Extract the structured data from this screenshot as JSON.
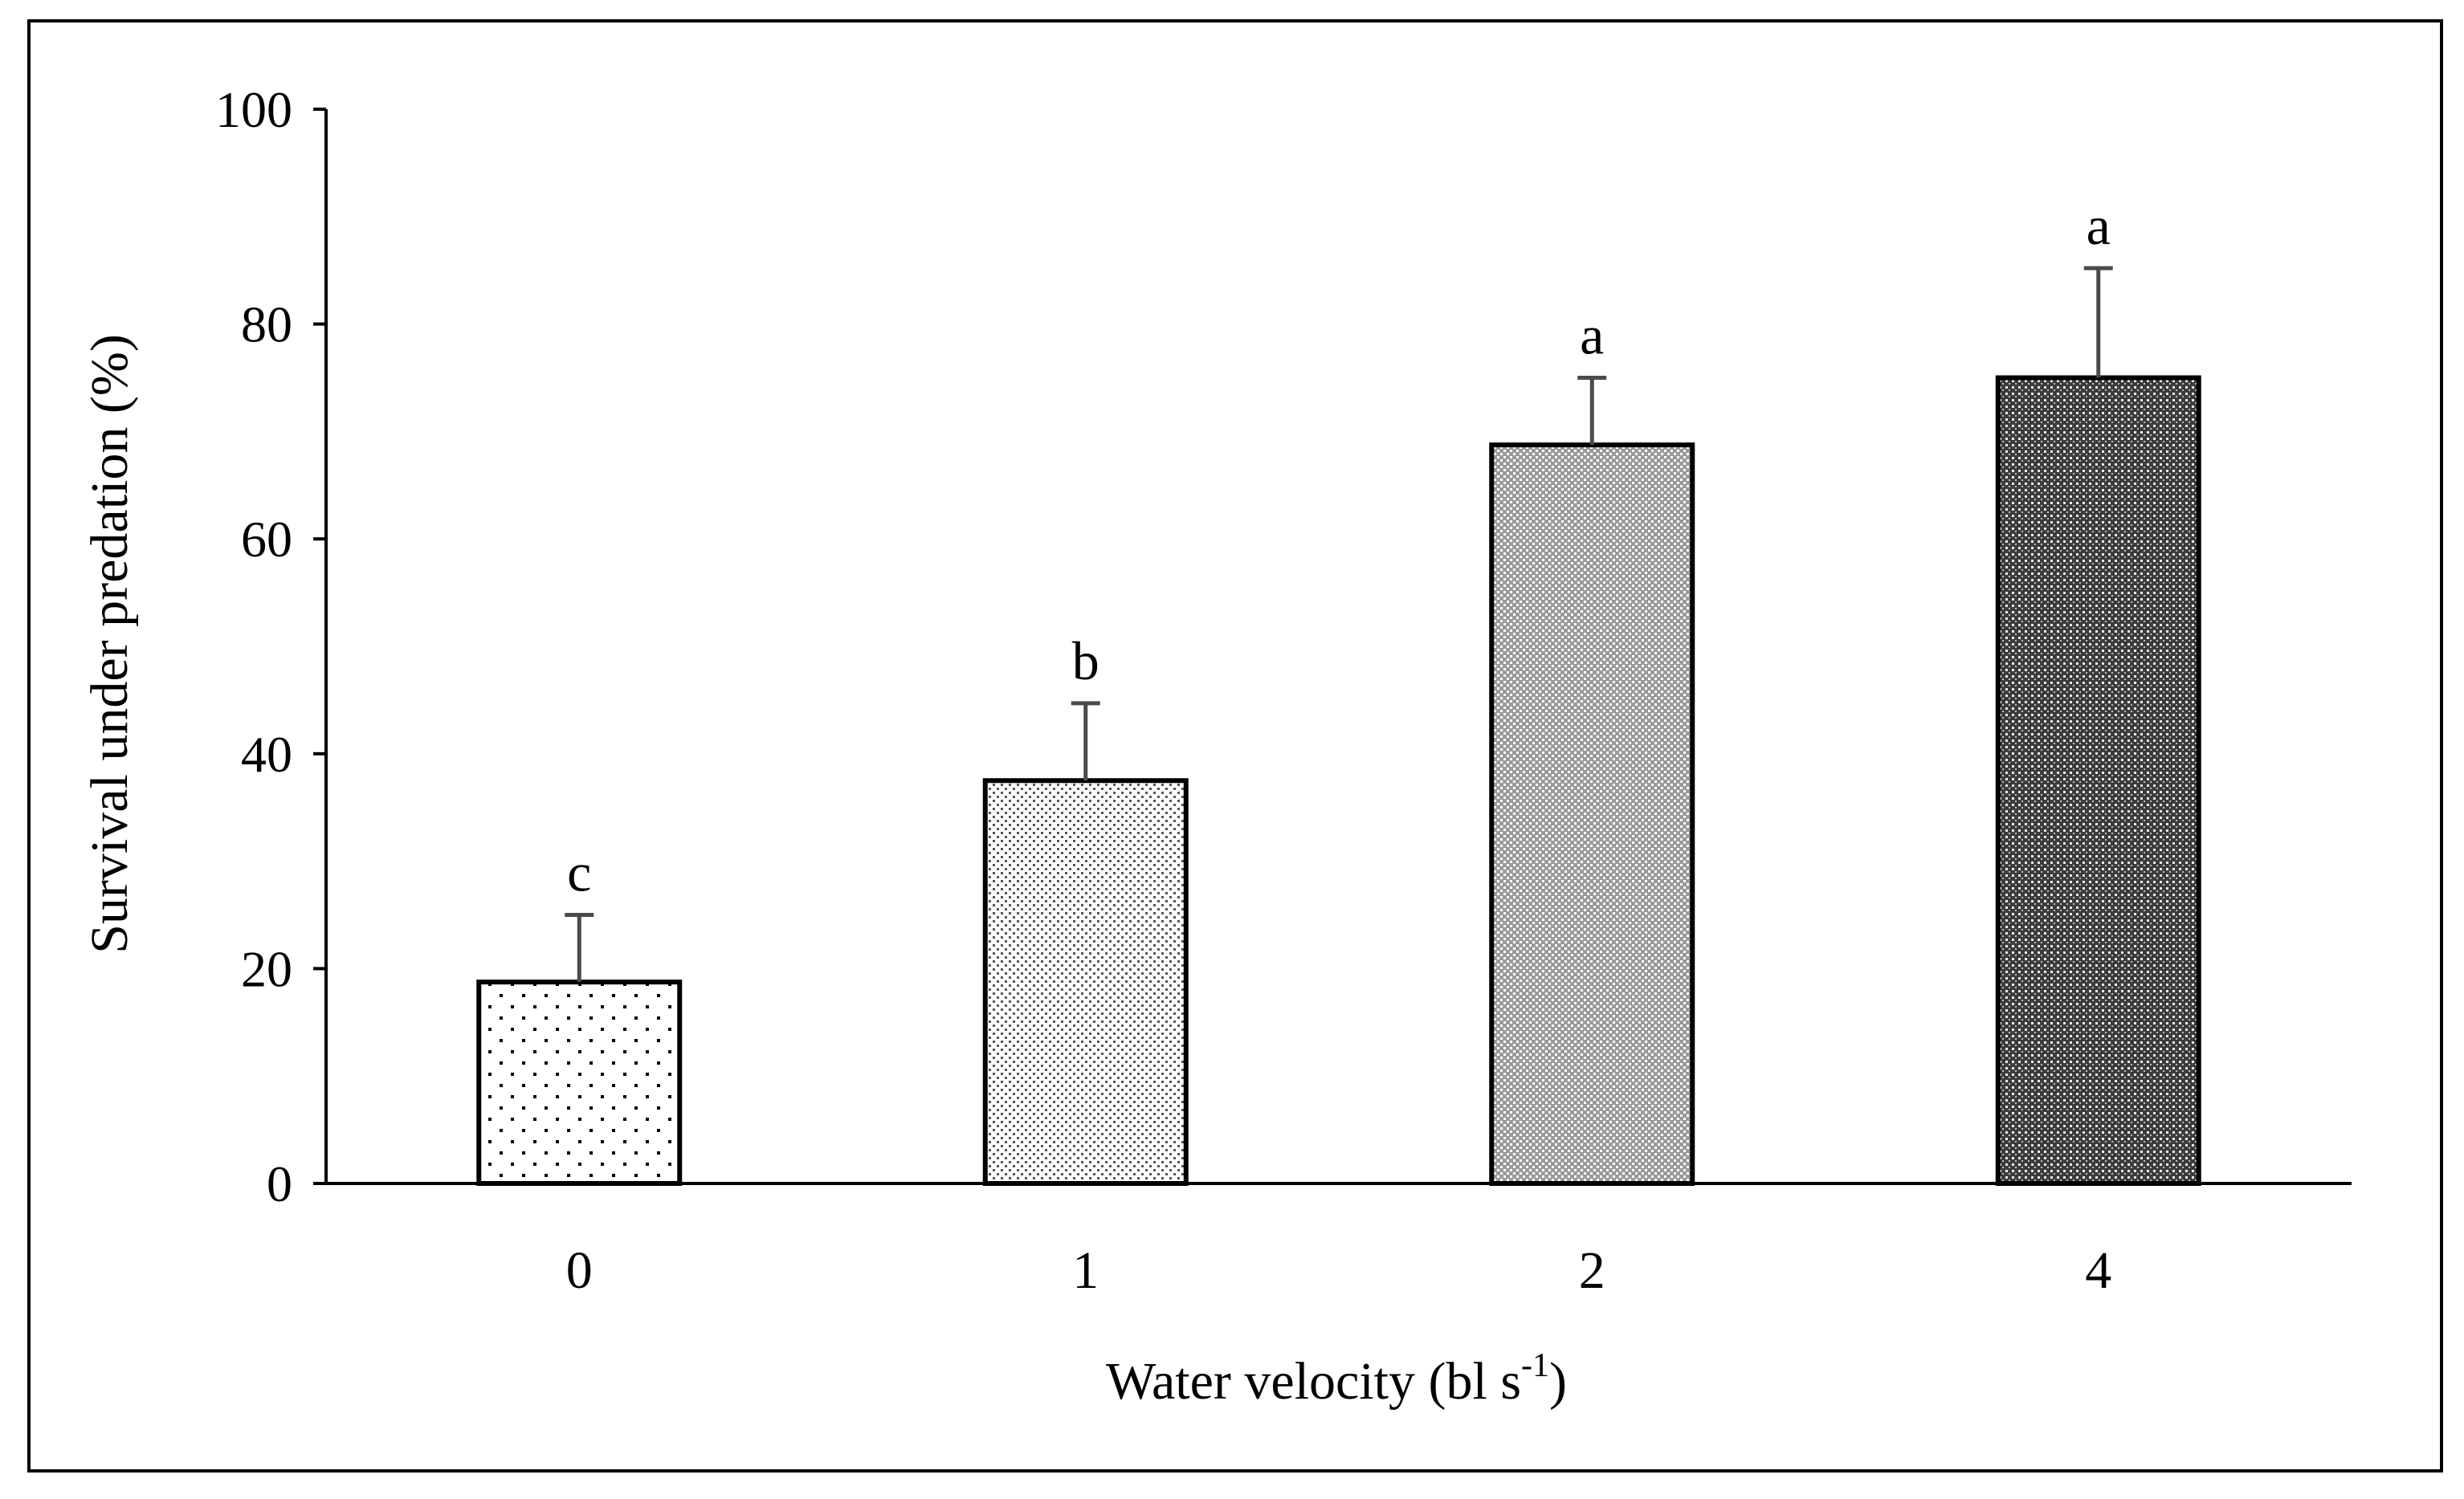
{
  "chart_data": {
    "type": "bar",
    "title": "",
    "xlabel_main": "Water velocity (bl s",
    "xlabel_sup": "-1",
    "xlabel_close": ")",
    "ylabel": "Survival under predation (%)",
    "categories": [
      "0",
      "1",
      "2",
      "4"
    ],
    "values": [
      18.75,
      37.5,
      68.75,
      75
    ],
    "errors": [
      6.25,
      7.2,
      6.25,
      10.2
    ],
    "significance_letters": [
      "c",
      "b",
      "a",
      "a"
    ],
    "ylim": [
      0,
      100
    ],
    "yticks": [
      "0",
      "20",
      "40",
      "60",
      "80",
      "100"
    ],
    "grid": false,
    "bar_patterns": [
      "sparse-dots",
      "fine-dots",
      "dense-dots",
      "dark-dots"
    ]
  }
}
